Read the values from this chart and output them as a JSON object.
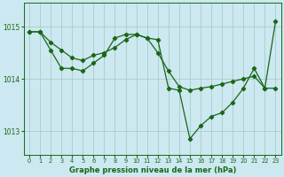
{
  "background_color": "#cce8f0",
  "grid_color": "#aacccc",
  "line_color": "#1a6618",
  "title": "Graphe pression niveau de la mer (hPa)",
  "xlim": [
    -0.5,
    23.5
  ],
  "ylim": [
    1012.55,
    1015.45
  ],
  "yticks": [
    1013,
    1014,
    1015
  ],
  "xticks": [
    0,
    1,
    2,
    3,
    4,
    5,
    6,
    7,
    8,
    9,
    10,
    11,
    12,
    13,
    14,
    15,
    16,
    17,
    18,
    19,
    20,
    21,
    22,
    23
  ],
  "series1_x": [
    0,
    1,
    2,
    3,
    4,
    5,
    6,
    7,
    8,
    9,
    10,
    11,
    12,
    13,
    14,
    15,
    16,
    17,
    18,
    19,
    20,
    21,
    22,
    23
  ],
  "series1_y": [
    1014.9,
    1014.9,
    1014.7,
    1014.55,
    1014.4,
    1014.35,
    1014.45,
    1014.5,
    1014.6,
    1014.75,
    1014.85,
    1014.78,
    1014.5,
    1014.15,
    1013.85,
    1013.78,
    1013.82,
    1013.85,
    1013.9,
    1013.95,
    1014.0,
    1014.05,
    1013.82,
    1013.82
  ],
  "series2_x": [
    0,
    1,
    2,
    3,
    4,
    5,
    6,
    7,
    8,
    9,
    10,
    11,
    12,
    13,
    14,
    15,
    16,
    17,
    18,
    19,
    20,
    21,
    22,
    23
  ],
  "series2_y": [
    1014.9,
    1014.9,
    1014.55,
    1014.2,
    1014.2,
    1014.15,
    1014.3,
    1014.45,
    1014.78,
    1014.85,
    1014.85,
    1014.78,
    1014.75,
    1013.82,
    1013.78,
    1012.85,
    1013.1,
    1013.28,
    1013.35,
    1013.55,
    1013.82,
    1014.2,
    1013.82,
    1015.1
  ]
}
